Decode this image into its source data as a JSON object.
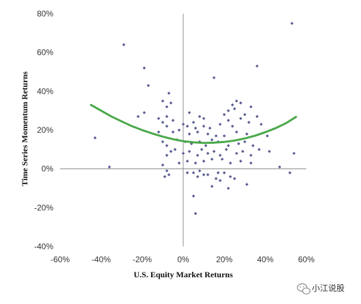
{
  "chart_data": {
    "type": "scatter",
    "title": "",
    "xlabel": "U.S. Equity Market Returns",
    "ylabel": "Time Series Momentum Returns",
    "xlim": [
      -0.6,
      0.6
    ],
    "ylim": [
      -0.4,
      0.8
    ],
    "x_ticks": [
      -0.6,
      -0.4,
      -0.2,
      0,
      0.2,
      0.4,
      0.6
    ],
    "x_tick_labels": [
      "-60%",
      "-40%",
      "-20%",
      "0%",
      "20%",
      "40%",
      "60%"
    ],
    "y_ticks": [
      -0.4,
      -0.2,
      0,
      0.2,
      0.4,
      0.6,
      0.8
    ],
    "y_tick_labels": [
      "-40%",
      "-20%",
      "0%",
      "20%",
      "40%",
      "60%",
      "80%"
    ],
    "grid": false,
    "legend": "none",
    "colors": {
      "points": "#5a5f92",
      "fit_line": "#4aa84a",
      "axes": "#8c8c8c"
    },
    "series": [
      {
        "kind": "points",
        "x": [
          -0.29,
          0.53,
          -0.19,
          0.36,
          -0.17,
          0.15,
          -0.07,
          -0.1,
          0.26,
          -0.06,
          0.28,
          -0.08,
          0.24,
          0.25,
          -0.19,
          0.33,
          0.22,
          -0.22,
          0.03,
          0.3,
          -0.08,
          -0.12,
          0.36,
          -0.05,
          -0.1,
          0.05,
          0.08,
          0.1,
          0.2,
          0.22,
          0.28,
          0.32,
          -0.08,
          0.0,
          0.02,
          0.06,
          0.1,
          0.13,
          0.18,
          0.24,
          -0.43,
          -0.12,
          -0.05,
          -0.02,
          0.03,
          0.07,
          0.12,
          0.16,
          0.2,
          0.26,
          0.31,
          0.41,
          -0.1,
          -0.08,
          -0.03,
          0.01,
          0.04,
          0.08,
          0.11,
          0.14,
          0.17,
          0.22,
          0.27,
          0.3,
          0.34,
          0.38,
          -0.08,
          -0.06,
          -0.04,
          0.0,
          0.03,
          0.07,
          0.09,
          0.12,
          0.15,
          0.18,
          0.21,
          0.26,
          0.29,
          0.33,
          0.37,
          0.42,
          -0.36,
          -0.1,
          -0.02,
          0.02,
          0.06,
          0.1,
          0.14,
          0.19,
          0.23,
          0.28,
          0.33,
          0.47,
          0.52,
          0.54,
          -0.09,
          -0.07,
          0.05,
          0.08,
          0.12,
          0.17,
          0.25,
          0.31,
          -0.08,
          0.07,
          0.1,
          0.16,
          0.2,
          0.23,
          0.02,
          0.14,
          0.05,
          0.06,
          0.18,
          0.22
        ],
        "y": [
          0.64,
          0.75,
          0.52,
          0.53,
          0.43,
          0.47,
          0.39,
          0.35,
          0.35,
          0.34,
          0.34,
          0.32,
          0.33,
          0.31,
          0.29,
          0.32,
          0.3,
          0.27,
          0.29,
          0.28,
          0.27,
          0.26,
          0.27,
          0.25,
          0.24,
          0.24,
          0.27,
          0.26,
          0.28,
          0.25,
          0.26,
          0.24,
          0.22,
          0.23,
          0.22,
          0.21,
          0.22,
          0.21,
          0.23,
          0.22,
          0.16,
          0.19,
          0.19,
          0.2,
          0.18,
          0.19,
          0.18,
          0.17,
          0.17,
          0.19,
          0.18,
          0.17,
          0.14,
          0.12,
          0.15,
          0.14,
          0.13,
          0.14,
          0.12,
          0.15,
          0.14,
          0.12,
          0.13,
          0.14,
          0.12,
          0.23,
          0.07,
          0.09,
          0.1,
          0.08,
          0.09,
          0.07,
          0.1,
          0.08,
          0.09,
          0.07,
          0.1,
          0.08,
          0.09,
          0.07,
          0.1,
          0.09,
          0.01,
          0.02,
          0.03,
          0.04,
          0.03,
          0.04,
          0.05,
          0.05,
          0.03,
          0.04,
          0.03,
          0.01,
          -0.02,
          0.08,
          -0.04,
          -0.03,
          -0.02,
          -0.01,
          -0.03,
          -0.02,
          -0.05,
          -0.08,
          -0.01,
          -0.04,
          -0.03,
          -0.05,
          -0.02,
          -0.04,
          -0.02,
          -0.09,
          -0.14,
          -0.23,
          -0.06,
          -0.1
        ]
      },
      {
        "kind": "fit-line",
        "x": [
          -0.45,
          -0.4,
          -0.35,
          -0.3,
          -0.25,
          -0.2,
          -0.15,
          -0.1,
          -0.05,
          0.0,
          0.05,
          0.1,
          0.15,
          0.2,
          0.25,
          0.3,
          0.35,
          0.4,
          0.45,
          0.5,
          0.55
        ],
        "y": [
          0.33,
          0.3,
          0.27,
          0.245,
          0.22,
          0.2,
          0.182,
          0.166,
          0.153,
          0.143,
          0.137,
          0.134,
          0.135,
          0.139,
          0.146,
          0.157,
          0.171,
          0.189,
          0.21,
          0.235,
          0.268
        ]
      }
    ]
  },
  "watermark": {
    "text": "小江说股",
    "icon": "wechat-icon"
  }
}
